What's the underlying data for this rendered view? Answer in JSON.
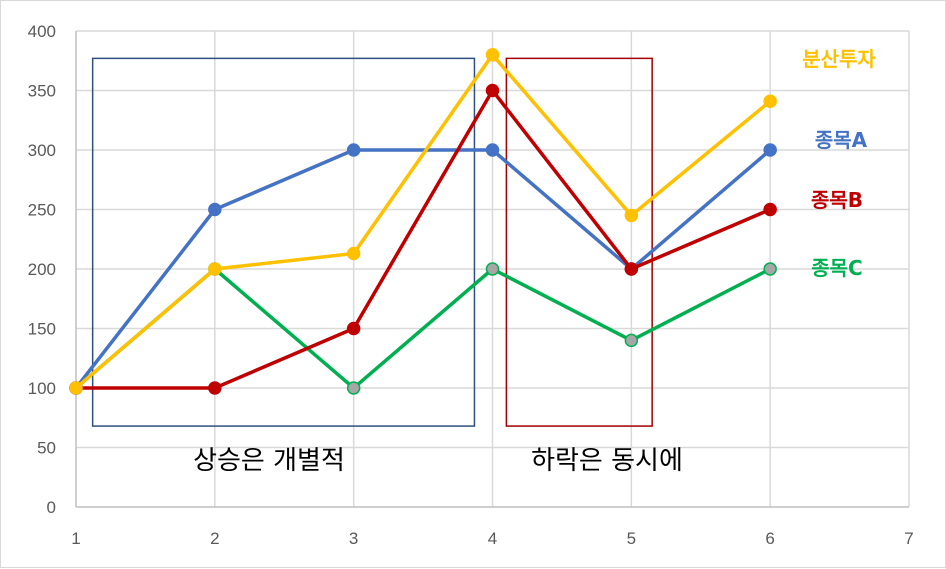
{
  "chart_data": {
    "type": "line",
    "x": [
      1,
      2,
      3,
      4,
      5,
      6
    ],
    "xlim": [
      1,
      7
    ],
    "ylim": [
      0,
      400
    ],
    "xticks": [
      "1",
      "2",
      "3",
      "4",
      "5",
      "6",
      "7"
    ],
    "yticks": [
      "0",
      "50",
      "100",
      "150",
      "200",
      "250",
      "300",
      "350",
      "400"
    ],
    "grid": true,
    "series": [
      {
        "name": "종목C",
        "color": "#00b050",
        "marker_fill": "#a6a6a6",
        "values": [
          100,
          200,
          100,
          200,
          140,
          200
        ]
      },
      {
        "name": "종목A",
        "color": "#4472c4",
        "marker_fill": "#4472c4",
        "values": [
          100,
          250,
          300,
          300,
          200,
          300
        ]
      },
      {
        "name": "종목B",
        "color": "#c00000",
        "marker_fill": "#c00000",
        "values": [
          100,
          100,
          150,
          350,
          200,
          250
        ]
      },
      {
        "name": "분산투자",
        "color": "#ffc000",
        "marker_fill": "#ffc000",
        "values": [
          100,
          200,
          213,
          380,
          245,
          341
        ]
      }
    ],
    "annotations": [
      {
        "text": "상승은 개별적",
        "box_color": "#2f4f7f",
        "x_range": [
          1.12,
          3.87
        ],
        "y_range": [
          68,
          377
        ]
      },
      {
        "text": "하락은 동시에",
        "box_color": "#a00000",
        "x_range": [
          4.1,
          5.15
        ],
        "y_range": [
          68,
          377
        ]
      }
    ]
  }
}
